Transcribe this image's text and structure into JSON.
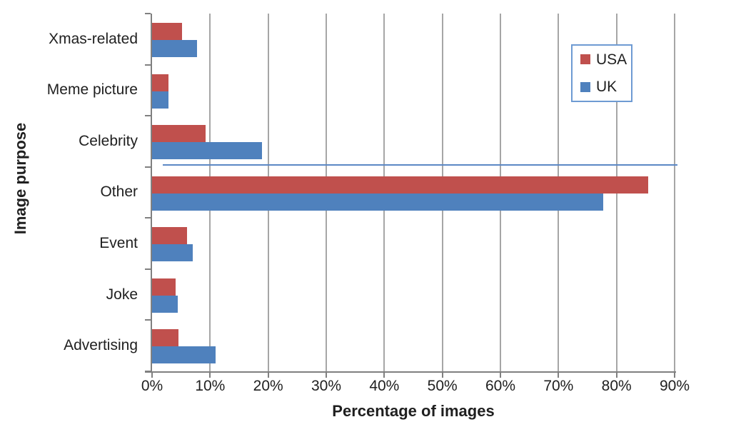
{
  "chart_data": {
    "type": "bar",
    "orientation": "horizontal",
    "title": "",
    "categories": [
      "Xmas-related",
      "Meme picture",
      "Celebrity",
      "Other",
      "Event",
      "Joke",
      "Advertising"
    ],
    "series": [
      {
        "name": "USA",
        "color": "#C0504D",
        "values": [
          5.2,
          2.8,
          9.2,
          85.4,
          6.0,
          4.1,
          4.5
        ]
      },
      {
        "name": "UK",
        "color": "#4F81BD",
        "values": [
          7.7,
          2.8,
          18.9,
          77.7,
          7.0,
          4.4,
          10.9
        ]
      }
    ],
    "xlabel": "Percentage of images",
    "ylabel": "Image purpose",
    "xlim": [
      0,
      90
    ],
    "xtick_labels": [
      "0%",
      "10%",
      "20%",
      "30%",
      "40%",
      "50%",
      "60%",
      "70%",
      "80%",
      "90%"
    ],
    "grid": true,
    "legend_position": "top-right",
    "annotation_line": {
      "description": "thin horizontal blue line between Celebrity and Other rows",
      "color": "#5C88C5",
      "x_start_pct": 1.9,
      "x_end_pct": 90.5
    }
  },
  "colors": {
    "usa_bar": "#C0504D",
    "uk_bar": "#4F81BD",
    "gridline": "#A6A6A6",
    "axis": "#808080",
    "legend_border": "#6E9BD3",
    "text": "#1F1F1F",
    "background": "#FFFFFF"
  }
}
